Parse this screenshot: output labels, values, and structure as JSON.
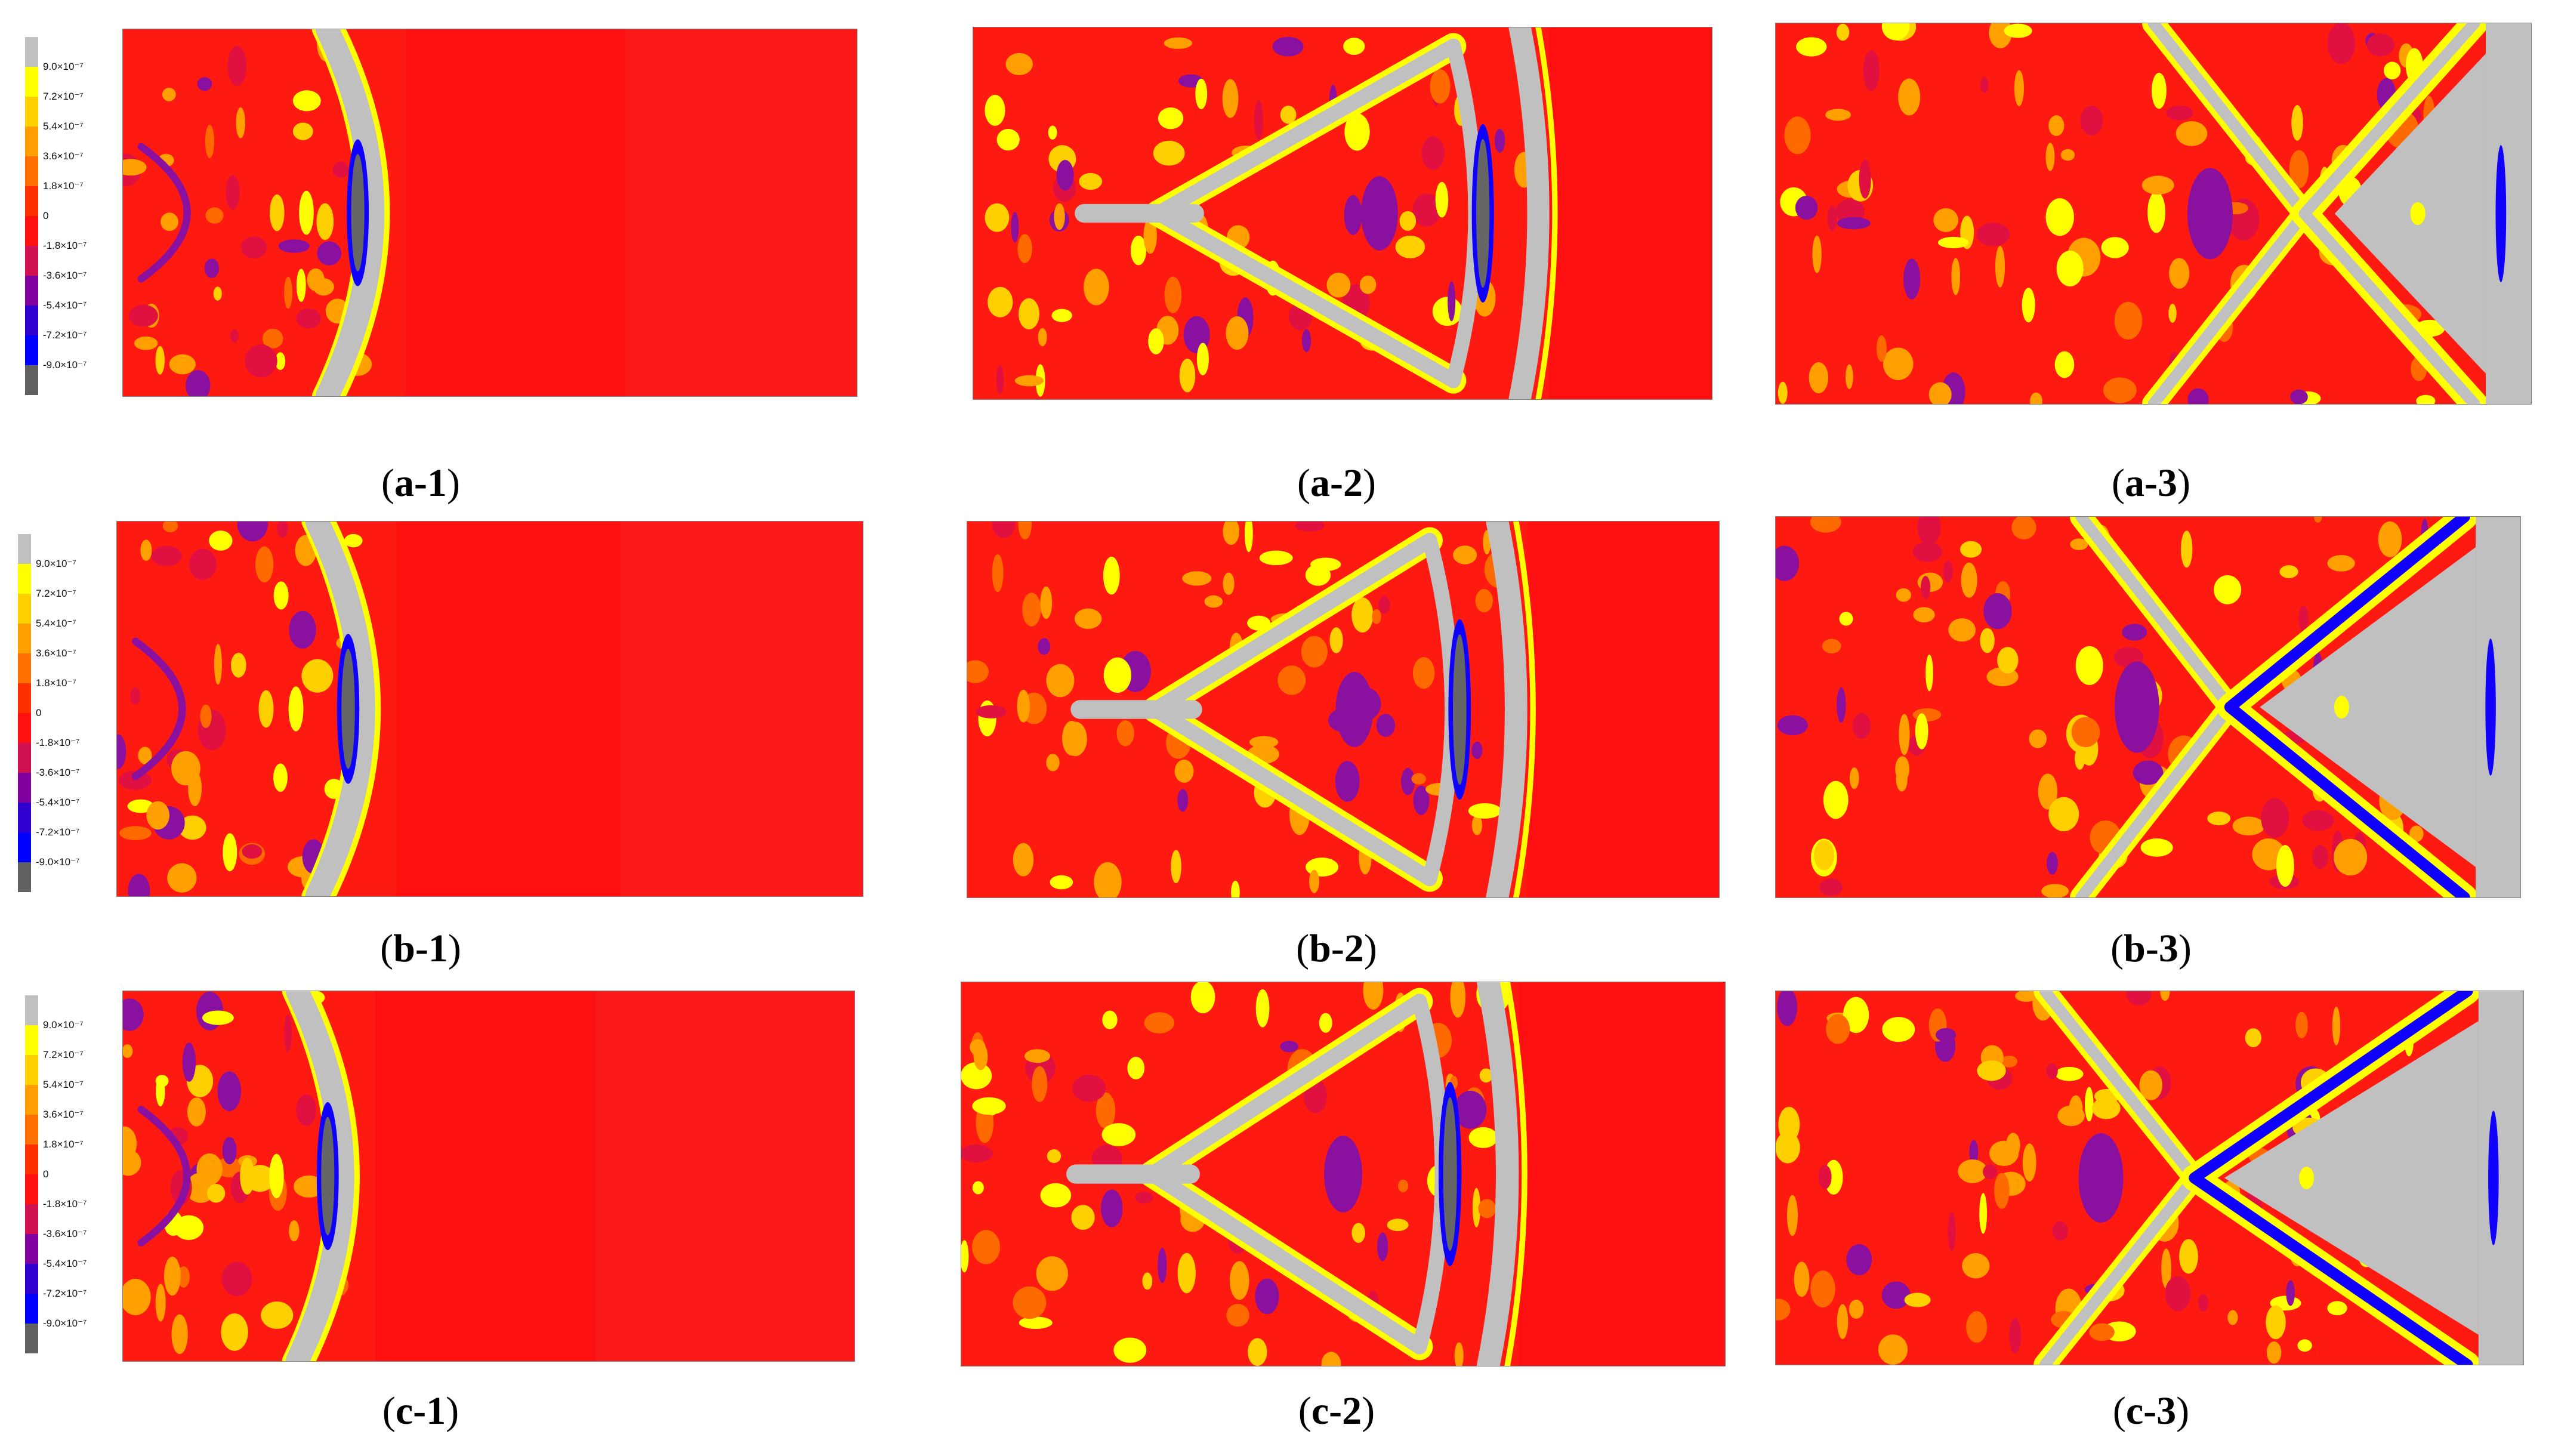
{
  "legend_labels": [
    "9.0×10⁻⁷",
    "7.2×10⁻⁷",
    "5.4×10⁻⁷",
    "3.6×10⁻⁷",
    "1.8×10⁻⁷",
    "0",
    "-1.8×10⁻⁷",
    "-3.6×10⁻⁷",
    "-5.4×10⁻⁷",
    "-7.2×10⁻⁷",
    "-9.0×10⁻⁷"
  ],
  "legend_colors": [
    "#c0c0c0",
    "#ffff00",
    "#ffd000",
    "#ffa000",
    "#ff7000",
    "#ff3000",
    "#ff1010",
    "#d01050",
    "#8000a0",
    "#3000d0",
    "#0000ff",
    "#606060"
  ],
  "panels": [
    {
      "id": "a-1",
      "prefix": "a",
      "suffix": "-1"
    },
    {
      "id": "a-2",
      "prefix": "a",
      "suffix": "-2"
    },
    {
      "id": "a-3",
      "prefix": "a",
      "suffix": "-3"
    },
    {
      "id": "b-1",
      "prefix": "b",
      "suffix": "-1"
    },
    {
      "id": "b-2",
      "prefix": "b",
      "suffix": "-2"
    },
    {
      "id": "b-3",
      "prefix": "b",
      "suffix": "-3"
    },
    {
      "id": "c-1",
      "prefix": "c",
      "suffix": "-1"
    },
    {
      "id": "c-2",
      "prefix": "c",
      "suffix": "-2"
    },
    {
      "id": "c-3",
      "prefix": "c",
      "suffix": "-3"
    }
  ],
  "captions": {
    "open": "(",
    "close": ")"
  }
}
